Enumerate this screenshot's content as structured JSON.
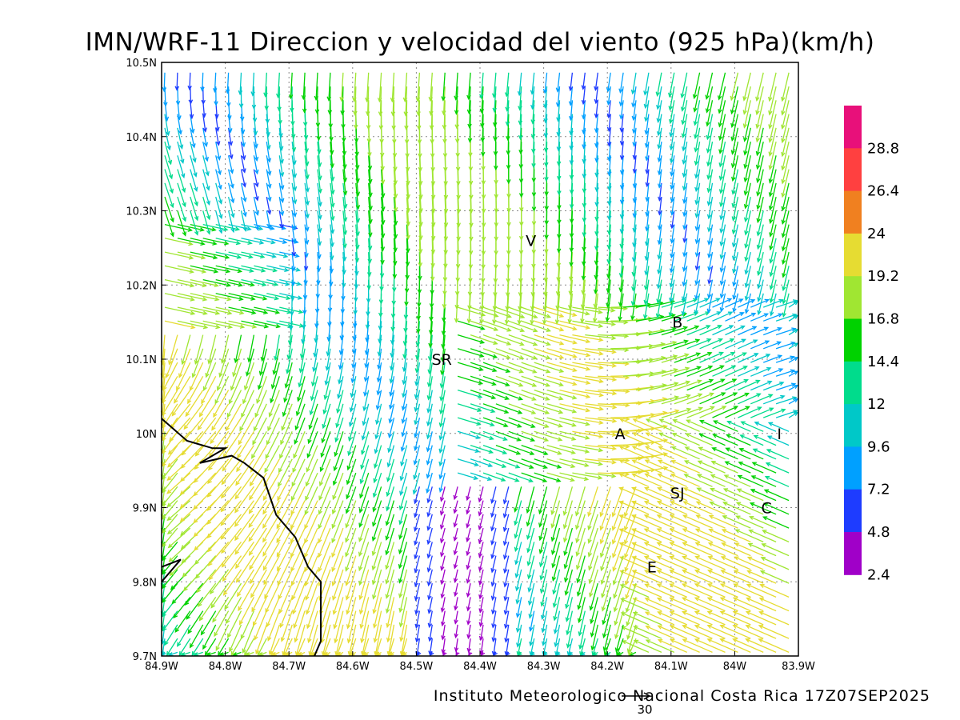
{
  "title": "IMN/WRF-11 Direccion y velocidad del viento (925 hPa)(km/h)",
  "footer": "Instituto Meteorologico Nacional Costa Rica 17Z07SEP2025",
  "reference_vector": {
    "label": "30",
    "value": 30
  },
  "axes": {
    "x_ticks": [
      "84.9W",
      "84.8W",
      "84.7W",
      "84.6W",
      "84.5W",
      "84.4W",
      "84.3W",
      "84.2W",
      "84.1W",
      "84W",
      "83.9W"
    ],
    "y_ticks": [
      "10.5N",
      "10.4N",
      "10.3N",
      "10.2N",
      "10.1N",
      "10N",
      "9.9N",
      "9.8N",
      "9.7N"
    ],
    "lon_range": [
      -84.9,
      -83.9
    ],
    "lat_range": [
      9.7,
      10.5
    ],
    "grid": "dotted"
  },
  "colorbar": {
    "labels": [
      "28.8",
      "26.4",
      "24",
      "19.2",
      "16.8",
      "14.4",
      "12",
      "9.6",
      "7.2",
      "4.8",
      "2.4"
    ],
    "colors": [
      "#e8107a",
      "#ff4040",
      "#f08020",
      "#e6dc32",
      "#a0e632",
      "#00d200",
      "#00dc8c",
      "#00c8c8",
      "#00a0ff",
      "#1e3cff",
      "#a000c8"
    ]
  },
  "places": [
    {
      "label": "V",
      "lon": -84.32,
      "lat": 10.26
    },
    {
      "label": "B",
      "lon": -84.09,
      "lat": 10.15
    },
    {
      "label": "SR",
      "lon": -84.46,
      "lat": 10.1
    },
    {
      "label": "A",
      "lon": -84.18,
      "lat": 10.0
    },
    {
      "label": "I",
      "lon": -83.93,
      "lat": 10.0
    },
    {
      "label": "SJ",
      "lon": -84.09,
      "lat": 9.92
    },
    {
      "label": "C",
      "lon": -83.95,
      "lat": 9.9
    },
    {
      "label": "E",
      "lon": -84.13,
      "lat": 9.82
    }
  ],
  "coastline": [
    [
      -84.9,
      10.02
    ],
    [
      -84.86,
      9.99
    ],
    [
      -84.82,
      9.98
    ],
    [
      -84.8,
      9.98
    ],
    [
      -84.84,
      9.96
    ],
    [
      -84.79,
      9.97
    ],
    [
      -84.77,
      9.96
    ],
    [
      -84.74,
      9.94
    ],
    [
      -84.72,
      9.89
    ],
    [
      -84.69,
      9.86
    ],
    [
      -84.67,
      9.82
    ],
    [
      -84.65,
      9.8
    ],
    [
      -84.65,
      9.72
    ],
    [
      -84.66,
      9.7
    ]
  ],
  "coastline2": [
    [
      -84.9,
      9.8
    ],
    [
      -84.87,
      9.83
    ],
    [
      -84.9,
      9.82
    ]
  ]
}
